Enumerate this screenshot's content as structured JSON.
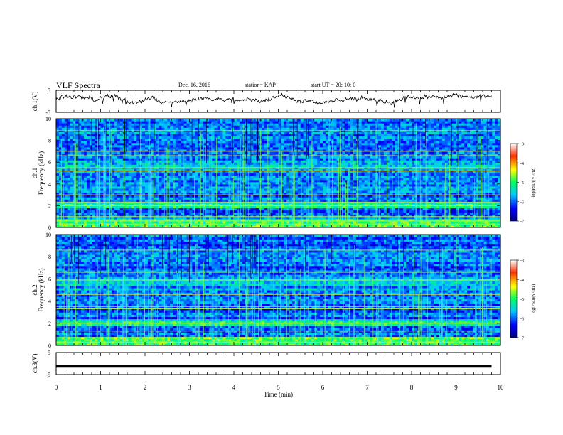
{
  "header": {
    "title": "VLF Spectra",
    "date": "Dec. 16, 2016",
    "station": "station= KAP",
    "start": "start  UT  =   20: 10: 0"
  },
  "chart_data": [
    {
      "type": "line",
      "ylabel": "ch.1(V)",
      "ylim": [
        -5,
        5
      ],
      "yticks": [
        "5",
        "-5"
      ],
      "xlim": [
        0,
        10
      ]
    },
    {
      "type": "heatmap",
      "ylabel_line1": "ch.1",
      "ylabel_line2": "Frequency (kHz)",
      "ylim": [
        0,
        10
      ],
      "yticks": [
        "0",
        "2",
        "4",
        "6",
        "8",
        "10"
      ],
      "xlim": [
        0,
        10
      ],
      "colorbar": {
        "label": "log(PSD)(V²/Hz)",
        "ticks": [
          "-3",
          "-4",
          "-5",
          "-6",
          "-7"
        ],
        "range": [
          -7,
          -3
        ]
      }
    },
    {
      "type": "heatmap",
      "ylabel_line1": "ch.2",
      "ylabel_line2": "Frequency (kHz)",
      "ylim": [
        0,
        10
      ],
      "yticks": [
        "0",
        "2",
        "4",
        "6",
        "8",
        "10"
      ],
      "xlim": [
        0,
        10
      ],
      "colorbar": {
        "label": "log(PSD)(V²/Hz)",
        "ticks": [
          "-3",
          "-4",
          "-5",
          "-6",
          "-7"
        ],
        "range": [
          -7,
          -3
        ]
      }
    },
    {
      "type": "line",
      "ylabel": "ch.3(V)",
      "ylim": [
        -5,
        5
      ],
      "yticks": [
        "5",
        "-5"
      ],
      "xlim": [
        0,
        10
      ],
      "xlabel": "Time  (min)",
      "xticks": [
        "0",
        "1",
        "2",
        "3",
        "4",
        "5",
        "6",
        "7",
        "8",
        "9",
        "10"
      ],
      "data_extent": [
        0,
        9.8
      ],
      "constant_value": -1.2
    }
  ]
}
